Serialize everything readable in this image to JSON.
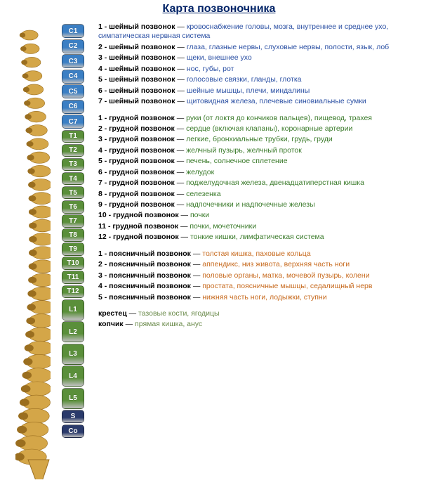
{
  "title": "Карта позвоночника",
  "colors": {
    "title": "#002266",
    "cervical_badge": "#3b7fc4",
    "thoracic_badge": "#5a8f3a",
    "lumbar_badge": "#5a8f3a",
    "sacrum_badge": "#2a3a6b",
    "cervical_text": "#2a4fa3",
    "thoracic_text": "#3a7a2a",
    "lumbar_text": "#c76a1e",
    "extra_text": "#6a8a4a",
    "spine_bone": "#d4a648",
    "spine_shadow": "#9a6e1f"
  },
  "badges": [
    {
      "label": "C1",
      "group": "c"
    },
    {
      "label": "C2",
      "group": "c"
    },
    {
      "label": "C3",
      "group": "c"
    },
    {
      "label": "C4",
      "group": "c"
    },
    {
      "label": "C5",
      "group": "c"
    },
    {
      "label": "C6",
      "group": "c"
    },
    {
      "label": "C7",
      "group": "c"
    },
    {
      "label": "T1",
      "group": "t"
    },
    {
      "label": "T2",
      "group": "t"
    },
    {
      "label": "T3",
      "group": "t"
    },
    {
      "label": "T4",
      "group": "t"
    },
    {
      "label": "T5",
      "group": "t"
    },
    {
      "label": "T6",
      "group": "t"
    },
    {
      "label": "T7",
      "group": "t"
    },
    {
      "label": "T8",
      "group": "t"
    },
    {
      "label": "T9",
      "group": "t"
    },
    {
      "label": "T10",
      "group": "t"
    },
    {
      "label": "T11",
      "group": "t"
    },
    {
      "label": "T12",
      "group": "t"
    },
    {
      "label": "L1",
      "group": "l"
    },
    {
      "label": "L2",
      "group": "l"
    },
    {
      "label": "L3",
      "group": "l"
    },
    {
      "label": "L4",
      "group": "l"
    },
    {
      "label": "L5",
      "group": "l"
    },
    {
      "label": "S",
      "group": "s"
    },
    {
      "label": "Co",
      "group": "s"
    }
  ],
  "sections": [
    {
      "group": "c",
      "entries": [
        {
          "n": "1",
          "name": "шейный позвонок",
          "desc": "кровоснабжение головы, мозга, внутреннее и среднее ухо, симпатическая нервная система"
        },
        {
          "n": "2",
          "name": "шейный позвонок",
          "desc": "глаза, глазные нервы, слуховые нервы, полости, язык, лоб"
        },
        {
          "n": "3",
          "name": "шейный позвонок",
          "desc": "щеки, внешнее ухо"
        },
        {
          "n": "4",
          "name": "шейный позвонок",
          "desc": "нос, губы, рот"
        },
        {
          "n": "5",
          "name": "шейный позвонок",
          "desc": "голосовые связки, гланды, глотка"
        },
        {
          "n": "6",
          "name": "шейный позвонок",
          "desc": "шейные мышцы, плечи, миндалины"
        },
        {
          "n": "7",
          "name": "шейный позвонок",
          "desc": "щитовидная железа, плечевые синовиальные сумки"
        }
      ]
    },
    {
      "group": "t",
      "entries": [
        {
          "n": "1",
          "name": "грудной позвонок",
          "desc": "руки (от локтя до кончиков пальцев), пищевод, трахея"
        },
        {
          "n": "2",
          "name": "грудной позвонок",
          "desc": "сердце (включая клапаны), коронарные артерии"
        },
        {
          "n": "3",
          "name": "грудной позвонок",
          "desc": "легкие, бронхиальные трубки, грудь, груди"
        },
        {
          "n": "4",
          "name": "грудной позвонок",
          "desc": "желчный пузырь, желчный проток"
        },
        {
          "n": "5",
          "name": "грудной позвонок",
          "desc": "печень, солнечное сплетение"
        },
        {
          "n": "6",
          "name": "грудной позвонок",
          "desc": "желудок"
        },
        {
          "n": "7",
          "name": "грудной позвонок",
          "desc": "поджелудочная железа, двенадцати­перстная кишка"
        },
        {
          "n": "8",
          "name": "грудной позвонок",
          "desc": "селезенка"
        },
        {
          "n": "9",
          "name": "грудной позвонок",
          "desc": "надпочечники и надпочечные железы"
        },
        {
          "n": "10",
          "name": "грудной позвонок",
          "desc": "почки"
        },
        {
          "n": "11",
          "name": "грудной позвонок",
          "desc": "почки, мочеточники"
        },
        {
          "n": "12",
          "name": "грудной позвонок",
          "desc": "тонкие кишки, лимфатическая система"
        }
      ]
    },
    {
      "group": "l",
      "entries": [
        {
          "n": "1",
          "name": "поясничный позвонок",
          "desc": "толстая кишка, паховые кольца"
        },
        {
          "n": "2",
          "name": "поясничный позвонок",
          "desc": "аппендикс, низ живота, верхняя часть ноги"
        },
        {
          "n": "3",
          "name": "поясничный позвонок",
          "desc": "половые органы, матка, мочевой пузырь, колени"
        },
        {
          "n": "4",
          "name": "поясничный позвонок",
          "desc": "простата, поясничные мышцы, седалищный нерв"
        },
        {
          "n": "5",
          "name": "поясничный позвонок",
          "desc": "нижняя часть ноги, лодыжки, ступни"
        }
      ]
    }
  ],
  "extras": [
    {
      "name": "крестец",
      "desc": "тазовые кости, ягодицы"
    },
    {
      "name": "копчик",
      "desc": "прямая кишка, анус"
    }
  ]
}
